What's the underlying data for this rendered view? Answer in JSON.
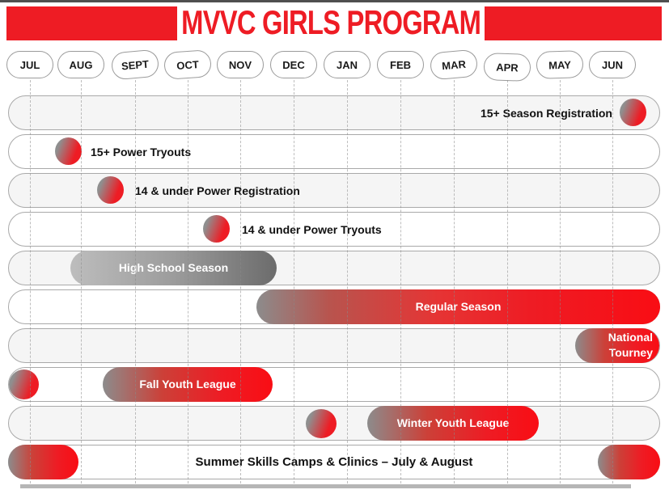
{
  "header": {
    "title": "MVVC GIRLS PROGRAM"
  },
  "months": [
    "JUL",
    "AUG",
    "SEPT",
    "OCT",
    "NOV",
    "DEC",
    "JAN",
    "FEB",
    "MAR",
    "APR",
    "MAY",
    "JUN"
  ],
  "colors": {
    "brand_red": "#ee1c24",
    "bar_gray": "#8c8c8c",
    "track_fill": "#f5f5f5",
    "track_border": "#a9a9a9"
  },
  "chart_data": {
    "type": "timeline",
    "title": "MVVC GIRLS PROGRAM",
    "x_axis": {
      "categories": [
        "JUL",
        "AUG",
        "SEPT",
        "OCT",
        "NOV",
        "DEC",
        "JAN",
        "FEB",
        "MAR",
        "APR",
        "MAY",
        "JUN"
      ],
      "gridlines": true
    },
    "items": [
      {
        "label": "15+ Season Registration",
        "kind": "marker",
        "marker_month": "JUN",
        "label_align": "right",
        "color": "red-gray-gradient"
      },
      {
        "label": "15+ Power Tryouts",
        "kind": "marker",
        "marker_month": "JUL-AUG",
        "color": "red-gray-gradient"
      },
      {
        "label": "14 & under Power Registration",
        "kind": "marker",
        "marker_month": "AUG-SEPT",
        "color": "red-gray-gradient"
      },
      {
        "label": "14 & under Power Tryouts",
        "kind": "marker",
        "marker_month": "OCT-NOV",
        "color": "red-gray-gradient"
      },
      {
        "label": "High School Season",
        "kind": "bar",
        "start_month": "AUG",
        "end_month": "DEC",
        "color": "gray-gradient",
        "label_color": "white"
      },
      {
        "label": "Regular Season",
        "kind": "bar",
        "start_month": "NOV-DEC",
        "end_month": "JUN",
        "color": "red-gradient",
        "label_color": "white"
      },
      {
        "label": "National Tourney",
        "label_line1": "National",
        "label_line2": "Tourney",
        "kind": "bar",
        "start_month": "MAY",
        "end_month": "JUN",
        "color": "red-gradient",
        "label_color": "white"
      },
      {
        "label": "Fall Youth League",
        "kind": "marker+bar",
        "marker_month": "JUL",
        "start_month": "SEPT",
        "end_month": "NOV",
        "color": "red-gradient",
        "label_color": "white"
      },
      {
        "label": "Winter Youth League",
        "kind": "marker+bar",
        "marker_month": "DEC-JAN",
        "start_month": "FEB",
        "end_month": "APR",
        "color": "red-gradient",
        "label_color": "white"
      },
      {
        "label": "Summer Skills Camps & Clinics – July & August",
        "kind": "two-bars",
        "bar_months": [
          "JUL",
          "JUN"
        ],
        "color": "red-gradient",
        "label_color": "black",
        "label_align": "center"
      }
    ]
  }
}
